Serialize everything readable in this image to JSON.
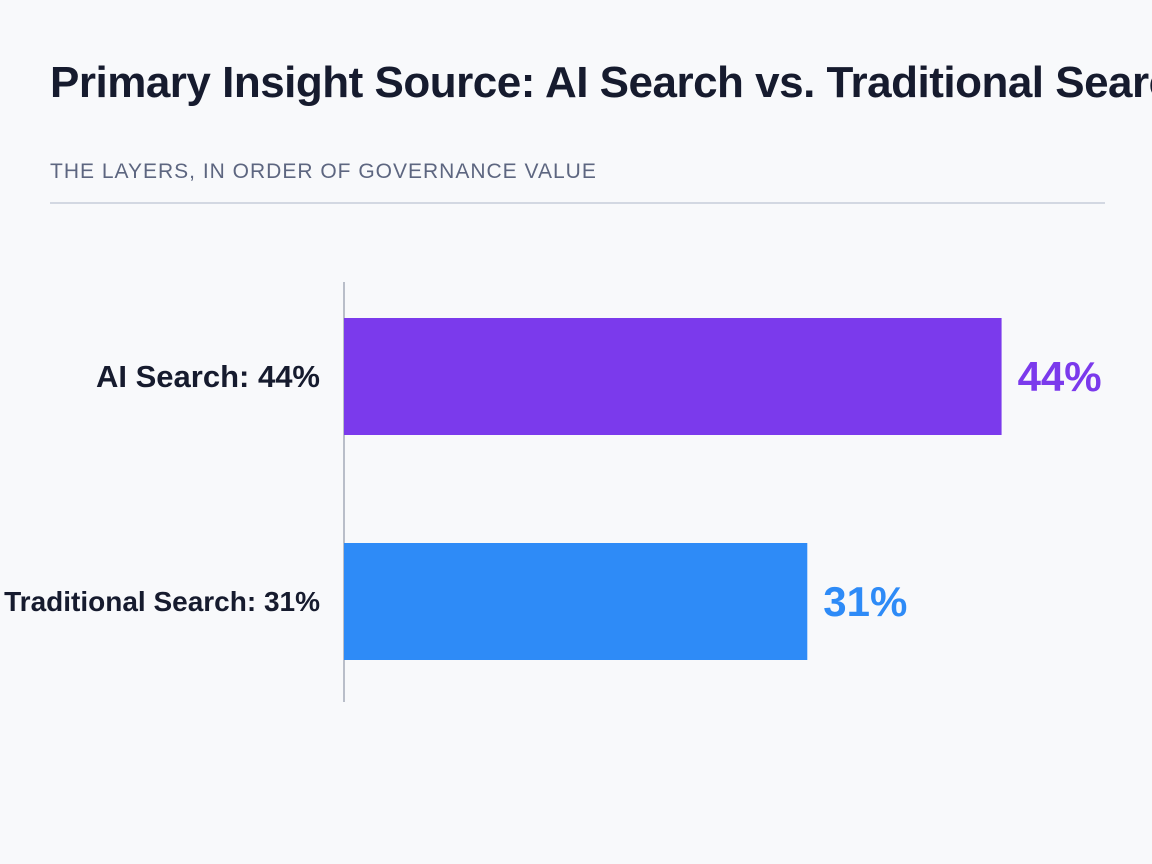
{
  "header": {
    "title": "Primary Insight Source: AI Search vs. Traditional Search",
    "subtitle": "THE LAYERS, IN ORDER OF GOVERNANCE VALUE"
  },
  "chart_data": {
    "type": "bar",
    "orientation": "horizontal",
    "title": "Primary Insight Source: AI Search vs. Traditional Search",
    "subtitle": "THE LAYERS, IN ORDER OF GOVERNANCE VALUE",
    "categories": [
      "AI Search: 44%",
      "Traditional Search: 31%"
    ],
    "values": [
      44,
      31
    ],
    "value_labels": [
      "44%",
      "31%"
    ],
    "unit": "%",
    "xlim": [
      0,
      45.5
    ],
    "grid": false,
    "legend": "none",
    "colors": [
      "#7b3aec",
      "#2e8bf7"
    ],
    "value_label_colors": [
      "#7b3aec",
      "#2e8bf7"
    ]
  }
}
